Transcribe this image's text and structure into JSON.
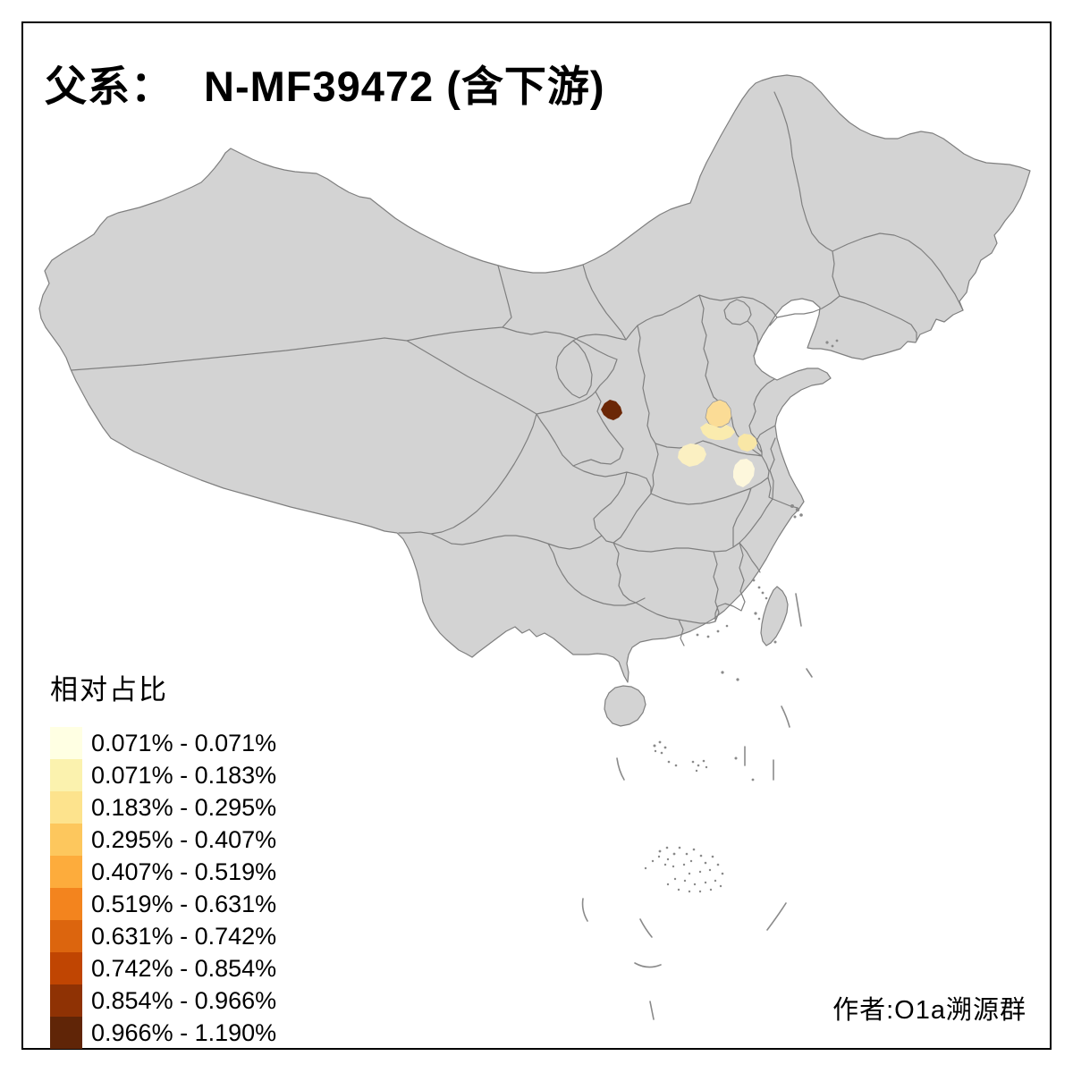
{
  "title": {
    "prefix": "父系：",
    "main": "N-MF39472 (含下游)"
  },
  "legend": {
    "title": "相对占比",
    "items": [
      {
        "label": "0.071% - 0.071%",
        "color": "#FFFFE3"
      },
      {
        "label": "0.071% - 0.183%",
        "color": "#FBF2AE"
      },
      {
        "label": "0.183% - 0.295%",
        "color": "#FDE38D"
      },
      {
        "label": "0.295% - 0.407%",
        "color": "#FDC75D"
      },
      {
        "label": "0.407% - 0.519%",
        "color": "#FDAC3C"
      },
      {
        "label": "0.519% - 0.631%",
        "color": "#F3841E"
      },
      {
        "label": "0.631% - 0.742%",
        "color": "#DC650E"
      },
      {
        "label": "0.742% - 0.854%",
        "color": "#C04502"
      },
      {
        "label": "0.854% - 0.966%",
        "color": "#8F3204"
      },
      {
        "label": "0.966% - 1.190%",
        "color": "#602507"
      }
    ]
  },
  "attribution": "作者:O1a溯源群",
  "map": {
    "land_fill": "#D3D3D3",
    "border_color": "#7F7F7F",
    "sea_color": "#FFFFFF",
    "frame_color": "#000000",
    "regions": [
      {
        "name": "shaanxi-north-prefecture",
        "value": "0.966% - 1.190%",
        "color": "#6B2706"
      },
      {
        "name": "shanxi-southeast-prefecture",
        "value": "0.183% - 0.295%",
        "color": "#FBDC96"
      },
      {
        "name": "shanxi-south-prefecture",
        "value": "0.071% - 0.183%",
        "color": "#FAEBAE"
      },
      {
        "name": "henan-north-prefecture",
        "value": "0.071% - 0.183%",
        "color": "#F9E7A6"
      },
      {
        "name": "henan-west-prefecture",
        "value": "0.071% - 0.183%",
        "color": "#FBF0C2"
      },
      {
        "name": "henan-southeast-prefecture",
        "value": "0.071% - 0.071%",
        "color": "#FDF7DC"
      }
    ]
  }
}
